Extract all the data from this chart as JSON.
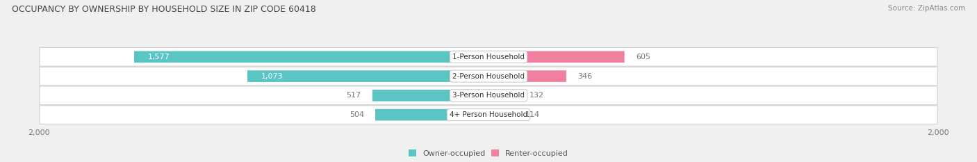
{
  "title": "OCCUPANCY BY OWNERSHIP BY HOUSEHOLD SIZE IN ZIP CODE 60418",
  "source": "Source: ZipAtlas.com",
  "categories": [
    "1-Person Household",
    "2-Person Household",
    "3-Person Household",
    "4+ Person Household"
  ],
  "owner_values": [
    1577,
    1073,
    517,
    504
  ],
  "renter_values": [
    605,
    346,
    132,
    114
  ],
  "owner_color": "#5bc4c4",
  "renter_color": "#f080a0",
  "axis_max": 2000,
  "background_color": "#f0f0f0",
  "row_bg_color": "#e8e8e8",
  "legend_owner": "Owner-occupied",
  "legend_renter": "Renter-occupied",
  "title_fontsize": 9,
  "source_fontsize": 7.5,
  "label_fontsize": 7.5,
  "value_fontsize": 8
}
